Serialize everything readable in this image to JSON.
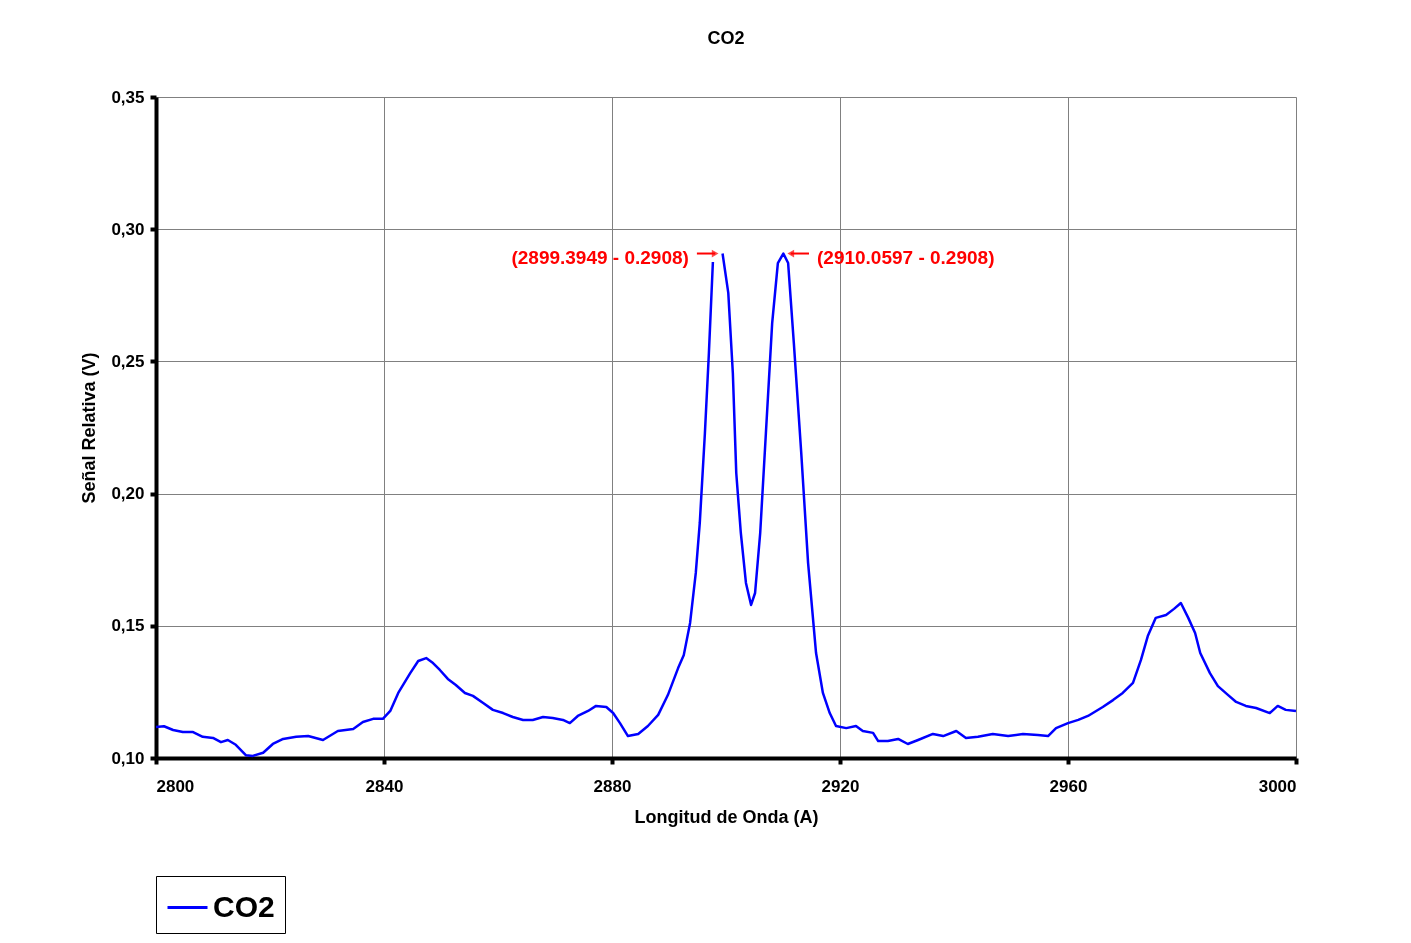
{
  "chart_data": {
    "type": "line",
    "title": "CO2",
    "xlabel": "Longitud de Onda (A)",
    "ylabel": "Señal Relativa (V)",
    "xlim": [
      2800,
      3000
    ],
    "xticks": [
      2800,
      2840,
      2880,
      2920,
      2960,
      3000
    ],
    "ylim": [
      0.1,
      0.35
    ],
    "yticks": [
      {
        "value": 0.1,
        "label": "0,10"
      },
      {
        "value": 0.15,
        "label": "0,15"
      },
      {
        "value": 0.2,
        "label": "0,20"
      },
      {
        "value": 0.25,
        "label": "0,25"
      },
      {
        "value": 0.3,
        "label": "0,30"
      },
      {
        "value": 0.35,
        "label": "0,35"
      }
    ],
    "grid": true,
    "legend": "bottom",
    "marker": "none",
    "line_style": "solid",
    "annotations": [
      {
        "text": "(2899.3949 - 0.2908)",
        "x": 2899.3949,
        "y": 0.2908
      },
      {
        "text": "(2910.0597 - 0.2908)",
        "x": 2910.0597,
        "y": 0.2908
      }
    ],
    "x": [
      2800,
      2801.4,
      2803,
      2804.7,
      2806.5,
      2808.2,
      2810,
      2811.4,
      2812.6,
      2814,
      2815.8,
      2817,
      2818.8,
      2820.5,
      2822.3,
      2824.6,
      2826.7,
      2829.3,
      2831.9,
      2834.6,
      2836.3,
      2838.1,
      2839.8,
      2841.1,
      2842.5,
      2844.6,
      2846,
      2847.4,
      2848.6,
      2849.8,
      2851.2,
      2852.6,
      2854.2,
      2855.6,
      2857.4,
      2859.1,
      2860.9,
      2862.6,
      2864.4,
      2866.1,
      2867.9,
      2869.6,
      2871.4,
      2872.6,
      2874,
      2875.8,
      2877.2,
      2879,
      2880.2,
      2881.4,
      2882.8,
      2884.6,
      2886.3,
      2888.1,
      2889.8,
      2891.6,
      2892.6,
      2893.7,
      2894.7,
      2895.4,
      2896.3,
      2897,
      2897.7,
      2898.5,
      2899.3949,
      2900.4,
      2901.2,
      2901.8,
      2902.6,
      2903.5,
      2904.4,
      2905.1,
      2906,
      2907,
      2908.1,
      2909.1,
      2910.0597,
      2910.9,
      2911.9,
      2913.2,
      2914.4,
      2915.8,
      2917,
      2918.2,
      2919.3,
      2921.1,
      2922.8,
      2924,
      2925.8,
      2926.7,
      2928.4,
      2930.2,
      2931.9,
      2933.7,
      2936.3,
      2938.1,
      2940.4,
      2942.1,
      2944.2,
      2946.8,
      2949.5,
      2952.1,
      2954.7,
      2956.5,
      2957.9,
      2960,
      2961.8,
      2963.5,
      2966.1,
      2967.9,
      2969.6,
      2971.4,
      2972.8,
      2974,
      2975.4,
      2977.2,
      2978.6,
      2979.8,
      2981.1,
      2982.3,
      2983.2,
      2984.9,
      2986.3,
      2988.1,
      2989.5,
      2991.2,
      2993,
      2995.4,
      2996.8,
      2998.2,
      3000
    ],
    "series": [
      {
        "name": "CO2",
        "color": "#0000ff",
        "values": [
          0.1117,
          0.112,
          0.1106,
          0.1098,
          0.1098,
          0.108,
          0.1076,
          0.106,
          0.1068,
          0.105,
          0.101,
          0.1008,
          0.102,
          0.1053,
          0.1072,
          0.108,
          0.1083,
          0.1068,
          0.1102,
          0.111,
          0.1136,
          0.1148,
          0.1148,
          0.1178,
          0.1246,
          0.1321,
          0.1367,
          0.1378,
          0.1359,
          0.1333,
          0.1299,
          0.1276,
          0.1246,
          0.1235,
          0.1208,
          0.1182,
          0.117,
          0.1155,
          0.1144,
          0.1144,
          0.1155,
          0.1151,
          0.1144,
          0.1132,
          0.1159,
          0.1178,
          0.1197,
          0.1193,
          0.117,
          0.1132,
          0.1083,
          0.1091,
          0.1121,
          0.1163,
          0.1238,
          0.134,
          0.139,
          0.1511,
          0.17,
          0.1889,
          0.2229,
          0.2532,
          0.2876,
          null,
          0.2908,
          0.2759,
          0.2456,
          0.2078,
          0.1851,
          0.1662,
          0.1579,
          0.1624,
          0.1851,
          0.2229,
          0.2645,
          0.2872,
          0.2908,
          0.2872,
          0.257,
          0.2154,
          0.1738,
          0.1397,
          0.1246,
          0.117,
          0.1121,
          0.1113,
          0.1121,
          0.1102,
          0.1095,
          0.1064,
          0.1064,
          0.1072,
          0.1053,
          0.1068,
          0.1091,
          0.1083,
          0.1102,
          0.1076,
          0.108,
          0.1091,
          0.1083,
          0.1091,
          0.1087,
          0.1083,
          0.1113,
          0.1132,
          0.1144,
          0.1159,
          0.1193,
          0.1219,
          0.1246,
          0.1284,
          0.1371,
          0.1461,
          0.153,
          0.1541,
          0.1564,
          0.1586,
          0.153,
          0.1473,
          0.1397,
          0.1321,
          0.1272,
          0.1238,
          0.1212,
          0.1197,
          0.1189,
          0.117,
          0.1197,
          0.1182,
          0.1178
        ]
      }
    ]
  }
}
